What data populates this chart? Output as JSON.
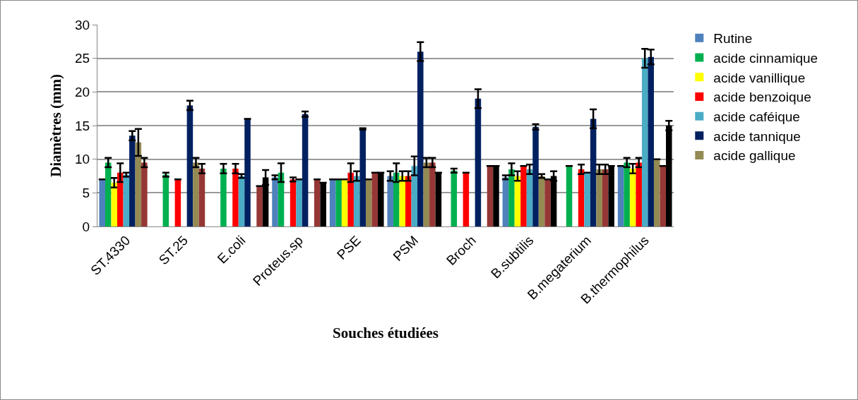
{
  "chart_data": {
    "type": "bar",
    "xlabel": "Souches étudiées",
    "ylabel": "Diamètres (mm)",
    "categories": [
      "ST.4330",
      "ST.25",
      "E.coli",
      "Proteus.sp",
      "PSE",
      "PSM",
      "Broch",
      "B.subtilis",
      "B.megaterium",
      "B.thermophilus"
    ],
    "series": [
      {
        "name": "Rutine",
        "color": "#4f81bd",
        "values": [
          7,
          null,
          null,
          7.3,
          7,
          7.5,
          null,
          7.3,
          null,
          9
        ],
        "errors": [
          null,
          null,
          null,
          0.3,
          null,
          0.7,
          null,
          0.3,
          null,
          null
        ]
      },
      {
        "name": "acide cinnamique",
        "color": "#00b050",
        "values": [
          9.5,
          7.7,
          8.6,
          8,
          7,
          8,
          8.3,
          8.5,
          9,
          9.5
        ],
        "errors": [
          0.7,
          0.3,
          0.7,
          1.4,
          null,
          1.4,
          0.3,
          0.9,
          null,
          0.7
        ]
      },
      {
        "name": "acide vanillique",
        "color": "#ffff00",
        "values": [
          6.5,
          null,
          null,
          null,
          7,
          7.5,
          null,
          7.5,
          null,
          8.6
        ],
        "errors": [
          0.7,
          null,
          null,
          null,
          null,
          0.7,
          null,
          0.7,
          null,
          0.7
        ]
      },
      {
        "name": "acide benzoique",
        "color": "#ff0000",
        "values": [
          8,
          7,
          8.6,
          7,
          8,
          7.5,
          8,
          9,
          8.5,
          9.5
        ],
        "errors": [
          1.4,
          null,
          0.7,
          0.3,
          1.4,
          0.7,
          null,
          null,
          0.7,
          0.7
        ]
      },
      {
        "name": "acide caféique",
        "color": "#4bacc6",
        "values": [
          7.7,
          null,
          7.5,
          7,
          7.5,
          9,
          null,
          8.5,
          8,
          25
        ],
        "errors": [
          0.3,
          null,
          0.3,
          null,
          0.7,
          1.4,
          null,
          0.7,
          null,
          1.4
        ]
      },
      {
        "name": "acide tannique",
        "color": "#002060",
        "values": [
          13.5,
          18,
          16,
          16.7,
          14.5,
          26,
          19,
          14.8,
          16,
          25.2
        ],
        "errors": [
          0.7,
          0.7,
          null,
          0.4,
          0.1,
          1.4,
          1.4,
          0.4,
          1.4,
          1.1
        ]
      },
      {
        "name": "acide gallique",
        "color": "#948a54",
        "values": [
          12.5,
          9.5,
          null,
          null,
          7,
          9.5,
          null,
          7.5,
          8.5,
          10
        ],
        "errors": [
          2,
          0.7,
          null,
          null,
          null,
          0.7,
          null,
          0.3,
          0.7,
          null
        ]
      },
      {
        "color": "#953735",
        "values": [
          9.5,
          8.6,
          6,
          7,
          8,
          9.5,
          9,
          7,
          8.5,
          9
        ],
        "errors": [
          0.7,
          0.7,
          null,
          null,
          null,
          0.7,
          null,
          null,
          0.7,
          null
        ]
      },
      {
        "color": "#000000",
        "values": [
          null,
          null,
          7.3,
          6.5,
          8,
          8,
          9,
          7.5,
          9,
          15
        ],
        "errors": [
          null,
          null,
          1.1,
          null,
          null,
          null,
          null,
          0.7,
          null,
          0.7
        ]
      }
    ],
    "ylim": [
      0,
      30
    ],
    "yticks": [
      0,
      5,
      10,
      15,
      20,
      25,
      30
    ],
    "grid": "y",
    "legend": "right"
  }
}
